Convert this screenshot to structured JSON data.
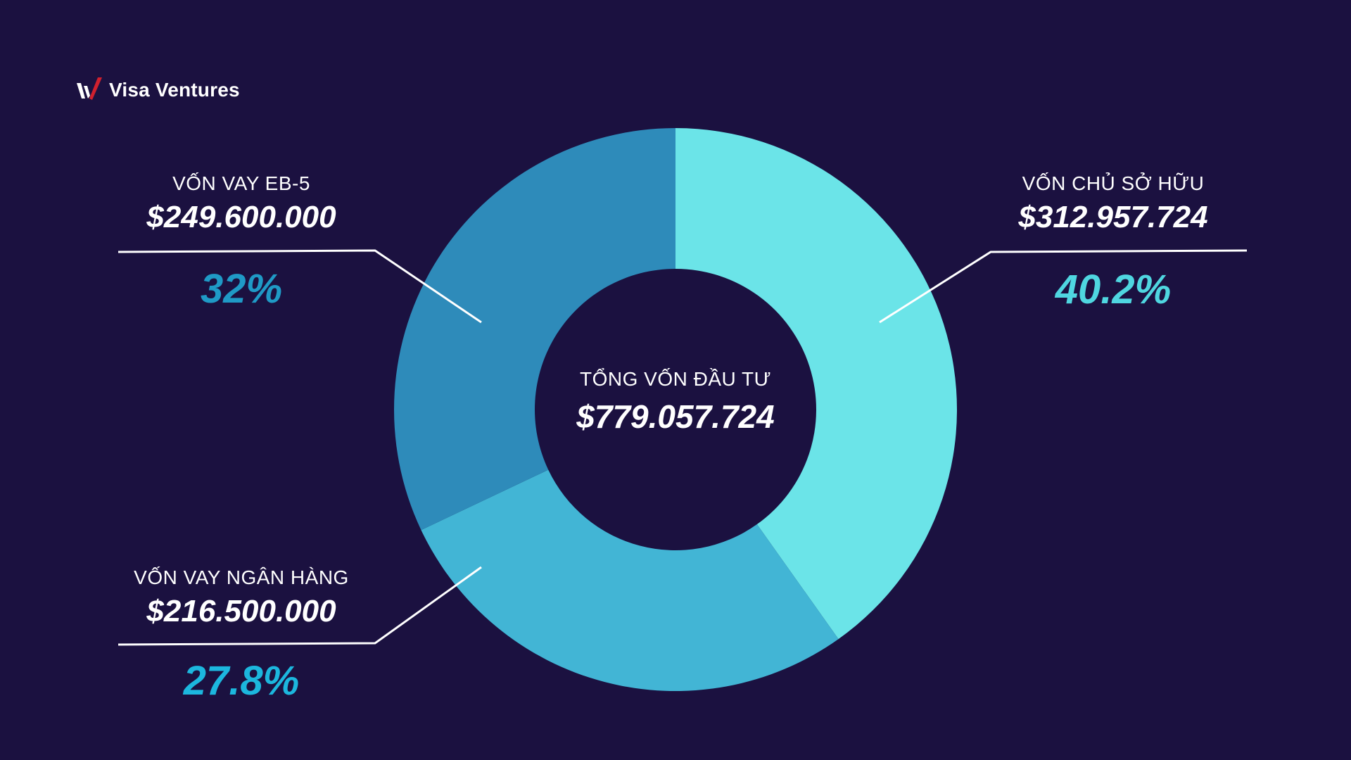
{
  "brand": {
    "name": "Visa Ventures",
    "mark_colors": [
      "#ffffff",
      "#d0202e"
    ]
  },
  "colors": {
    "background": "#1b1140",
    "leader_line": "#ffffff"
  },
  "chart_data": {
    "type": "pie",
    "donut": true,
    "center": {
      "label": "TỔNG VỐN ĐẦU TƯ",
      "value": "$779.057.724"
    },
    "slices": [
      {
        "name": "VỐN CHỦ SỞ HỮU",
        "amount": "$312.957.724",
        "value": 312957724,
        "percent": 40.2,
        "percent_label": "40.2%",
        "color": "#6be4e8",
        "label_color": "#4fd6e0",
        "side": "right-top"
      },
      {
        "name": "VỐN VAY NGÂN HÀNG",
        "amount": "$216.500.000",
        "value": 216500000,
        "percent": 27.8,
        "percent_label": "27.8%",
        "color": "#42b5d5",
        "label_color": "#1cb7de",
        "side": "left-bottom"
      },
      {
        "name": "VỐN VAY EB-5",
        "amount": "$249.600.000",
        "value": 249600000,
        "percent": 32,
        "percent_label": "32%",
        "color": "#2e8bba",
        "label_color": "#1f9ac6",
        "side": "left-top"
      }
    ]
  }
}
